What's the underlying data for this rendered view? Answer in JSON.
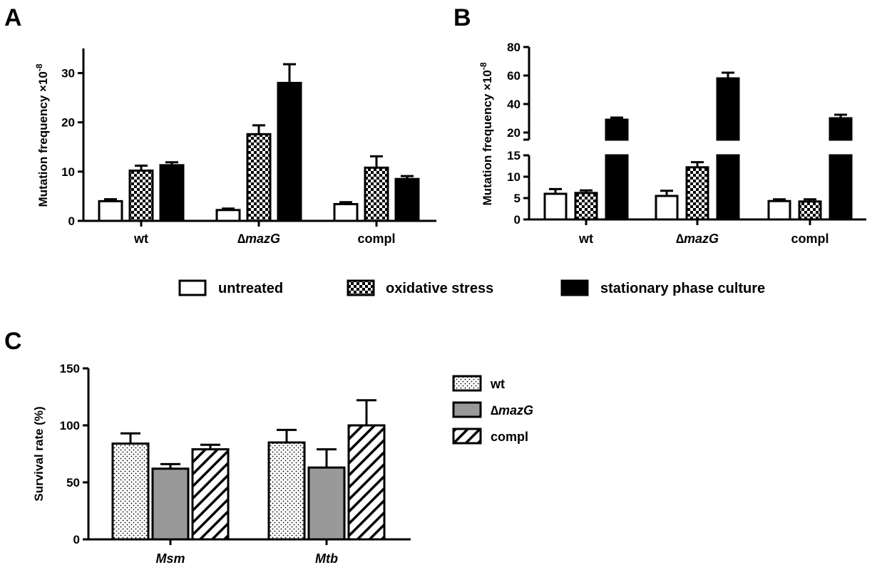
{
  "colors": {
    "untreated": "#ffffff",
    "oxidative": "checker",
    "stationary": "#000000",
    "wt": "dots",
    "mazG": "#999999",
    "compl": "hatch"
  },
  "legend_top": {
    "items": [
      "untreated",
      "oxidative stress",
      "stationary phase culture"
    ]
  },
  "legend_c": {
    "delta": "∆",
    "items": [
      {
        "label": "wt",
        "italic": ""
      },
      {
        "label": "",
        "italic": "mazG"
      },
      {
        "label": "compl",
        "italic": ""
      }
    ]
  },
  "chart_data": [
    {
      "panel": "A",
      "type": "bar",
      "ylabel": "Mutation frequency ×10",
      "ylabel_exp": "-8",
      "categories": [
        {
          "prefix": "",
          "italic": "",
          "label": "wt"
        },
        {
          "prefix": "∆",
          "italic": "mazG",
          "label": ""
        },
        {
          "prefix": "",
          "italic": "",
          "label": "compl"
        }
      ],
      "ylim": [
        0,
        35
      ],
      "yticks": [
        0,
        10,
        20,
        30
      ],
      "series": [
        {
          "name": "untreated",
          "values": [
            4.0,
            2.2,
            3.4
          ],
          "errors": [
            0.4,
            0.3,
            0.4
          ]
        },
        {
          "name": "oxidative stress",
          "values": [
            10.2,
            17.6,
            10.8
          ],
          "errors": [
            1.0,
            1.8,
            2.3
          ]
        },
        {
          "name": "stationary phase culture",
          "values": [
            11.3,
            28.0,
            8.5
          ],
          "errors": [
            0.6,
            3.8,
            0.6
          ]
        }
      ]
    },
    {
      "panel": "B",
      "type": "bar",
      "ylabel": "Mutation frequency ×10",
      "ylabel_exp": "-8",
      "categories": [
        {
          "prefix": "",
          "italic": "",
          "label": "wt"
        },
        {
          "prefix": "∆",
          "italic": "mazG",
          "label": ""
        },
        {
          "prefix": "",
          "italic": "",
          "label": "compl"
        }
      ],
      "broken_axis": {
        "lower": [
          0,
          15
        ],
        "upper": [
          15,
          80
        ]
      },
      "yticks_lower": [
        0,
        5,
        10,
        15
      ],
      "yticks_upper": [
        20,
        40,
        60,
        80
      ],
      "series": [
        {
          "name": "untreated",
          "values": [
            6.0,
            5.5,
            4.3
          ],
          "errors": [
            1.1,
            1.2,
            0.4
          ]
        },
        {
          "name": "oxidative stress",
          "values": [
            6.2,
            12.2,
            4.2
          ],
          "errors": [
            0.6,
            1.2,
            0.5
          ]
        },
        {
          "name": "stationary phase culture",
          "values": [
            29.0,
            58.0,
            30.0
          ],
          "errors": [
            1.5,
            4.0,
            2.5
          ]
        }
      ]
    },
    {
      "panel": "C",
      "type": "bar",
      "ylabel": "Survival rate (%)",
      "categories": [
        {
          "prefix": "",
          "italic": "Msm",
          "label": ""
        },
        {
          "prefix": "",
          "italic": "Mtb",
          "label": ""
        }
      ],
      "ylim": [
        0,
        150
      ],
      "yticks": [
        0,
        50,
        100,
        150
      ],
      "series": [
        {
          "name": "wt",
          "values": [
            84,
            85
          ],
          "errors": [
            9,
            11
          ]
        },
        {
          "name": "∆mazG",
          "values": [
            62,
            63
          ],
          "errors": [
            4,
            16
          ]
        },
        {
          "name": "compl",
          "values": [
            79,
            100
          ],
          "errors": [
            4,
            22
          ]
        }
      ]
    }
  ]
}
